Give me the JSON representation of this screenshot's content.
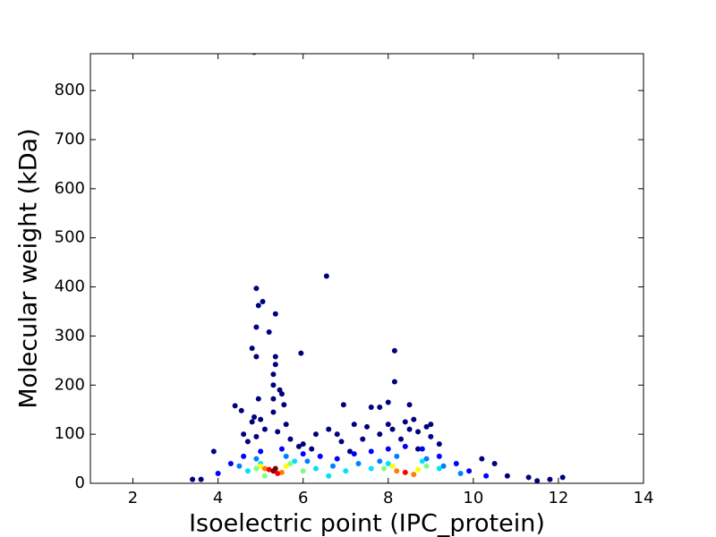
{
  "chart_data": {
    "type": "scatter",
    "x_label": "Isoelectric point (IPC_protein)",
    "y_label": "Molecular weight (kDa)",
    "xlim": [
      1,
      14
    ],
    "ylim": [
      0,
      875
    ],
    "xticks": [
      2,
      4,
      6,
      8,
      10,
      12,
      14
    ],
    "yticks": [
      0,
      100,
      200,
      300,
      400,
      500,
      600,
      700,
      800
    ],
    "series": [
      {
        "color": "#00007f",
        "x": [
          4.85,
          6.55,
          4.9,
          5.05,
          4.95,
          5.35,
          4.9,
          5.2,
          4.8,
          8.15,
          5.95,
          4.9,
          5.35,
          5.35,
          5.3,
          8.15,
          5.3,
          5.45,
          5.5,
          4.95,
          5.3,
          5.55,
          4.4,
          8.5,
          8.0,
          6.95,
          7.6,
          7.8,
          4.55,
          5.3,
          4.85,
          4.8,
          5.0,
          9.0,
          3.9,
          11.3,
          12.1,
          11.8,
          11.5,
          10.2,
          10.5,
          10.8,
          3.4,
          3.6,
          4.6,
          4.9,
          5.1,
          5.4,
          5.7,
          6.0,
          6.3,
          6.6,
          6.9,
          7.2,
          7.5,
          7.8,
          8.1,
          8.4,
          8.7,
          9.0,
          9.2,
          4.7,
          5.6,
          6.2,
          6.8,
          7.4,
          8.0,
          8.6,
          8.9,
          5.9,
          7.1,
          8.3,
          8.5,
          8.7
        ],
        "y": [
          878,
          422,
          397,
          370,
          362,
          345,
          318,
          308,
          275,
          270,
          265,
          258,
          258,
          242,
          222,
          207,
          200,
          190,
          182,
          172,
          172,
          160,
          158,
          160,
          165,
          160,
          155,
          155,
          148,
          145,
          135,
          125,
          130,
          120,
          65,
          12,
          12,
          8,
          5,
          50,
          40,
          15,
          8,
          8,
          100,
          95,
          110,
          105,
          90,
          80,
          100,
          110,
          85,
          120,
          115,
          100,
          110,
          125,
          105,
          95,
          80,
          85,
          120,
          70,
          100,
          90,
          120,
          130,
          115,
          75,
          65,
          90,
          110,
          70
        ]
      },
      {
        "color": "#0000ff",
        "x": [
          4.3,
          4.6,
          5.0,
          5.5,
          6.0,
          6.4,
          6.8,
          7.2,
          7.6,
          8.0,
          8.4,
          8.8,
          9.2,
          9.6,
          9.9,
          4.0,
          10.3
        ],
        "y": [
          40,
          55,
          65,
          70,
          60,
          55,
          50,
          60,
          65,
          70,
          75,
          70,
          55,
          40,
          25,
          20,
          15
        ]
      },
      {
        "color": "#0080ff",
        "x": [
          4.5,
          4.9,
          5.6,
          6.1,
          6.7,
          7.3,
          7.8,
          8.2,
          8.9,
          9.3,
          9.7
        ],
        "y": [
          35,
          50,
          55,
          45,
          35,
          40,
          45,
          55,
          50,
          35,
          20
        ]
      },
      {
        "color": "#00e0ff",
        "x": [
          4.7,
          5.0,
          5.8,
          6.3,
          7.0,
          7.6,
          8.0,
          8.8,
          9.2,
          6.6
        ],
        "y": [
          25,
          40,
          45,
          30,
          25,
          30,
          40,
          45,
          30,
          15
        ]
      },
      {
        "color": "#7fff7f",
        "x": [
          4.9,
          5.7,
          6.0,
          7.9,
          8.9,
          5.1
        ],
        "y": [
          30,
          40,
          25,
          30,
          35,
          15
        ]
      },
      {
        "color": "#ffff00",
        "x": [
          5.0,
          5.6,
          8.1,
          8.7
        ],
        "y": [
          35,
          35,
          35,
          28
        ]
      },
      {
        "color": "#ff8000",
        "x": [
          5.1,
          5.5,
          8.2,
          8.6
        ],
        "y": [
          30,
          22,
          25,
          18
        ]
      },
      {
        "color": "#ff0000",
        "x": [
          5.2,
          5.4,
          8.4
        ],
        "y": [
          28,
          20,
          22
        ]
      },
      {
        "color": "#800000",
        "x": [
          5.3,
          5.35
        ],
        "y": [
          25,
          30
        ]
      }
    ]
  }
}
